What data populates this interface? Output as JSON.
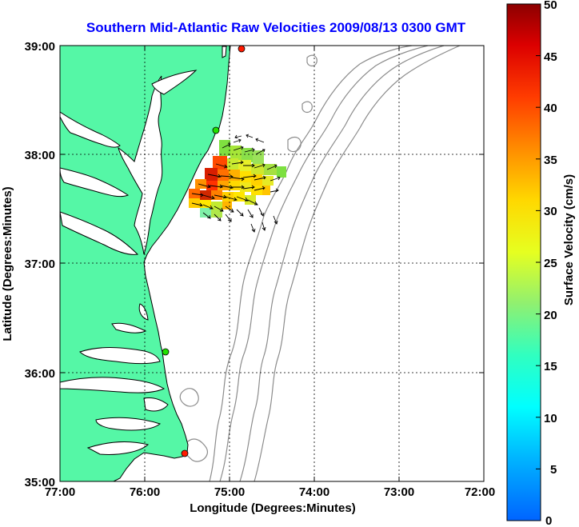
{
  "title": "Southern Mid-Atlantic Raw Velocities 2009/08/13 0300 GMT",
  "xlabel": "Longitude (Degrees:Minutes)",
  "ylabel": "Latitude (Degrees:Minutes)",
  "colorbar_label": "Surface Velocity (cm/s)",
  "x_ticks": [
    "77:00",
    "76:00",
    "75:00",
    "74:00",
    "73:00",
    "72:00"
  ],
  "y_ticks": [
    "39:00",
    "38:00",
    "37:00",
    "36:00",
    "35:00"
  ],
  "colorbar_ticks": [
    "50",
    "45",
    "40",
    "35",
    "30",
    "25",
    "20",
    "15",
    "10",
    "5",
    "0"
  ],
  "colors": {
    "land": "#55f7a6",
    "coast": "#000000",
    "bathymetry": "#8c8c8c",
    "grid": "#000000",
    "title": "#0000ff",
    "site_green": "#22e000",
    "site_red": "#ff1a00"
  },
  "chart_data": {
    "type": "map",
    "lon_range": [
      -77,
      -72
    ],
    "lat_range": [
      35,
      39
    ],
    "grid": true,
    "colorbar": {
      "min": 0,
      "max": 50,
      "units": "cm/s",
      "colormap": "jet"
    },
    "sites": [
      {
        "lon": -74.85,
        "lat": 38.97,
        "status": "red"
      },
      {
        "lon": -75.16,
        "lat": 38.2,
        "status": "green"
      },
      {
        "lon": -75.75,
        "lat": 36.18,
        "status": "green"
      },
      {
        "lon": -75.52,
        "lat": 35.25,
        "status": "red"
      }
    ]
  }
}
